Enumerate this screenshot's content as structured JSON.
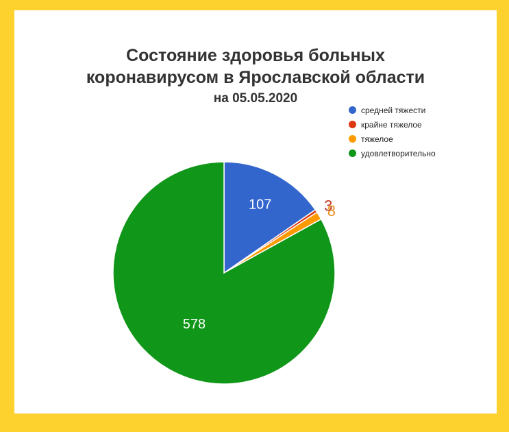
{
  "chart_data": {
    "type": "pie",
    "title": "Состояние здоровья больных",
    "title_line2": "коронавирусом в Ярославской области",
    "subtitle": "на 05.05.2020",
    "legend_position": "top-right",
    "series": [
      {
        "name": "средней тяжести",
        "value": 107,
        "label": "107",
        "color": "#3366cc",
        "label_color": "#ffffff"
      },
      {
        "name": "крайне тяжелое",
        "value": 3,
        "label": "3",
        "color": "#dc3912",
        "label_color": "#c0392b"
      },
      {
        "name": "тяжелое",
        "value": 8,
        "label": "8",
        "color": "#ff9900",
        "label_color": "#e8901a"
      },
      {
        "name": "удовлетворительно",
        "value": 578,
        "label": "578",
        "color": "#109618",
        "label_color": "#ffffff"
      }
    ]
  }
}
